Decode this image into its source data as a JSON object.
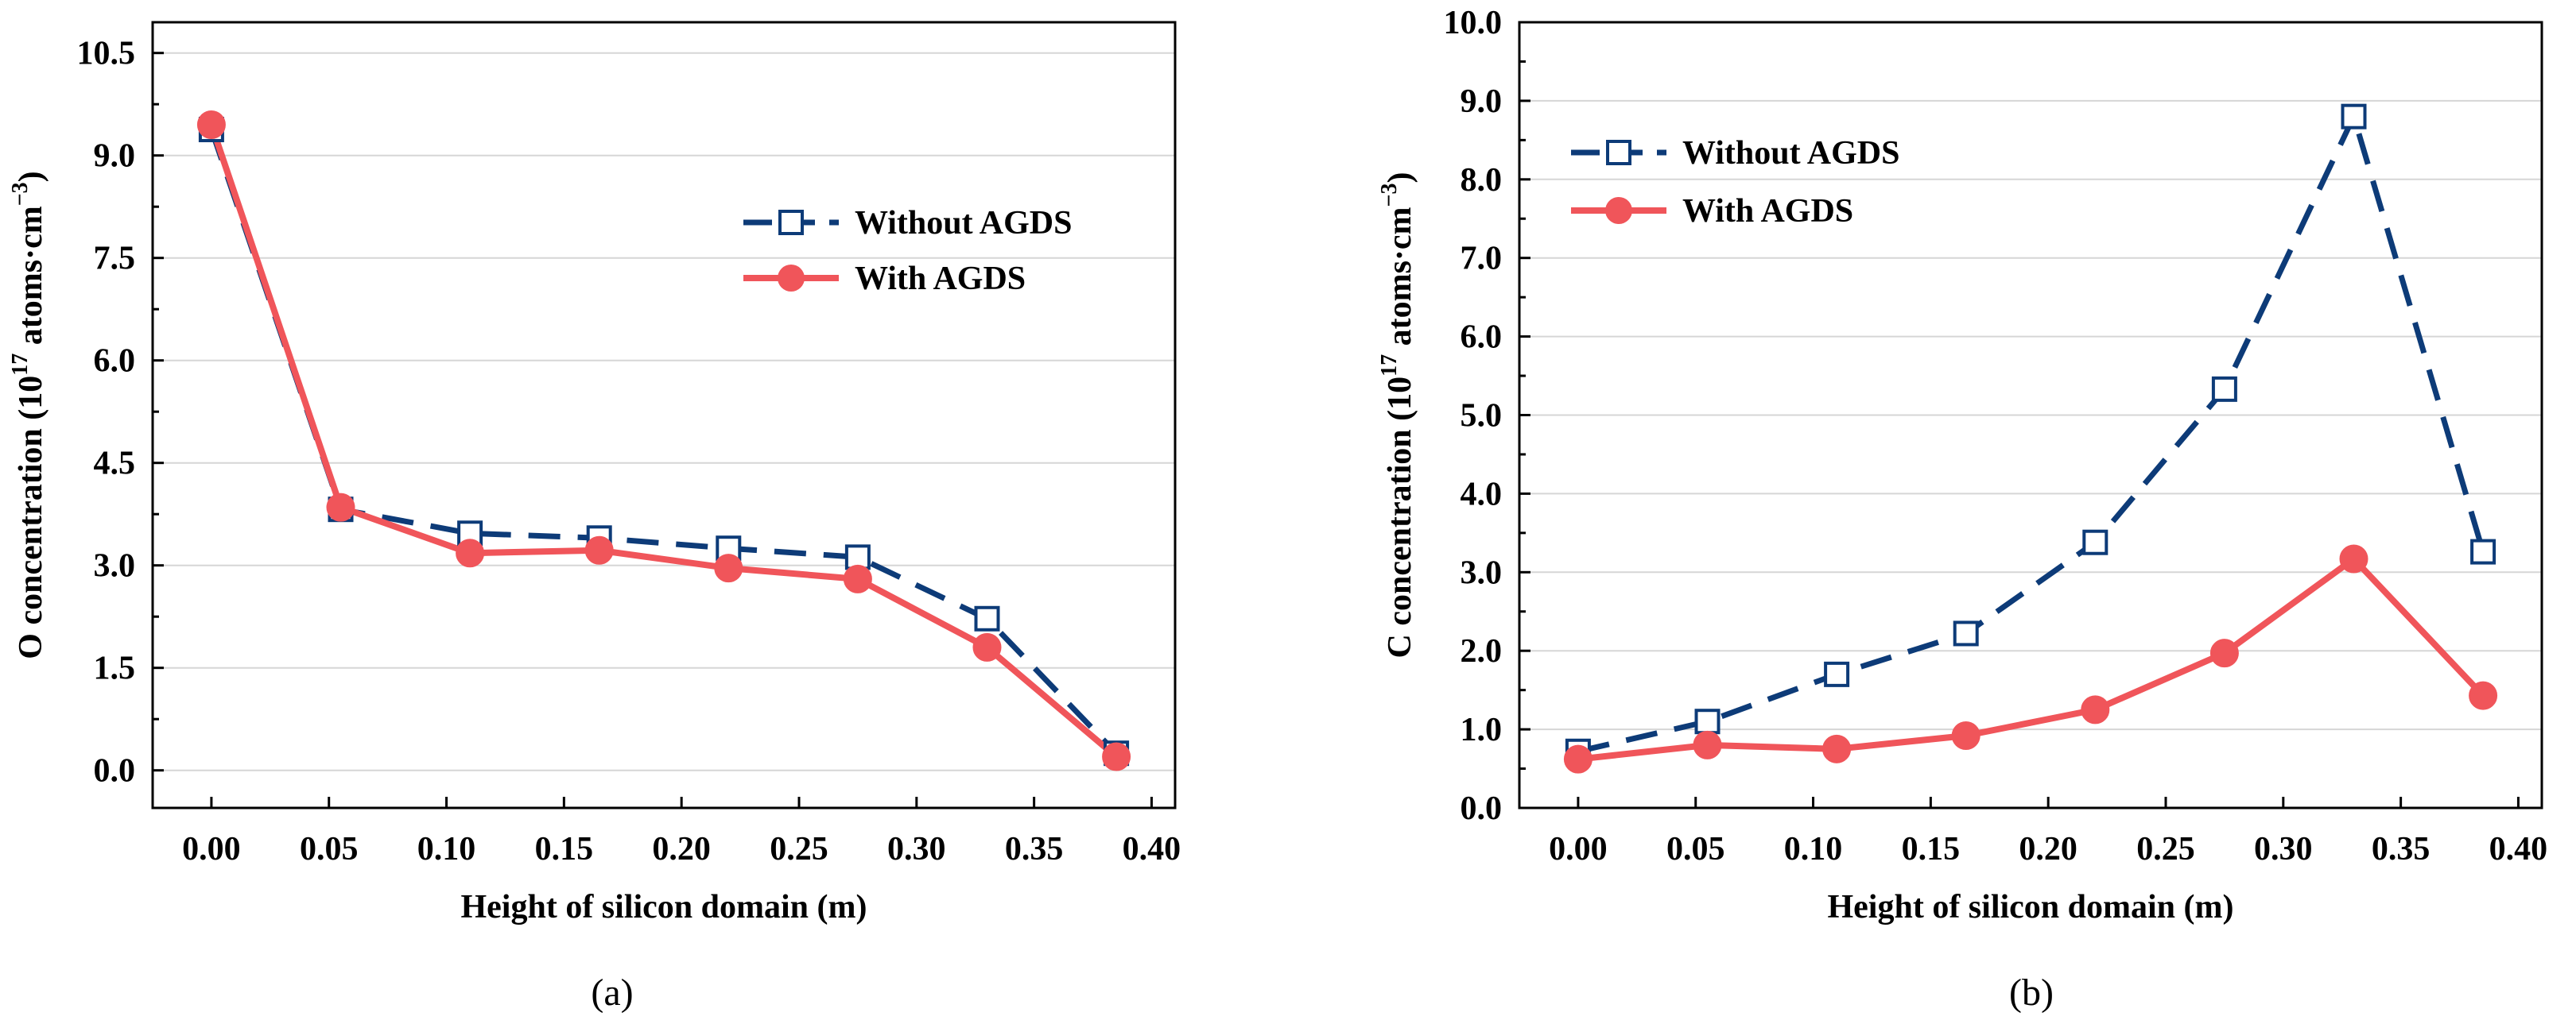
{
  "chart_data": [
    {
      "panel_label": "(a)",
      "type": "line",
      "xlabel": "Height of silicon domain (m)",
      "ylabel": {
        "main": "O concentration (10",
        "exp1": "17",
        "unit": " atoms·cm",
        "exp2": "−3",
        "close": ")"
      },
      "xlim": [
        -0.025,
        0.41
      ],
      "ylim": [
        -0.55,
        10.95
      ],
      "xticks": [
        "0.00",
        "0.05",
        "0.10",
        "0.15",
        "0.20",
        "0.25",
        "0.30",
        "0.35",
        "0.40"
      ],
      "yticks": [
        "0.0",
        "1.5",
        "3.0",
        "4.5",
        "6.0",
        "7.5",
        "9.0",
        "10.5"
      ],
      "legend_position": "middle-right",
      "series": [
        {
          "name": "Without AGDS",
          "style": "dashed",
          "marker": "open-square",
          "color": "#0d3b78",
          "x": [
            0.0,
            0.055,
            0.11,
            0.165,
            0.22,
            0.275,
            0.33,
            0.385
          ],
          "y": [
            9.38,
            3.82,
            3.47,
            3.4,
            3.25,
            3.12,
            2.22,
            0.25
          ]
        },
        {
          "name": "With AGDS",
          "style": "solid",
          "marker": "filled-circle",
          "color": "#f0555a",
          "x": [
            0.0,
            0.055,
            0.11,
            0.165,
            0.22,
            0.275,
            0.33,
            0.385
          ],
          "y": [
            9.45,
            3.85,
            3.18,
            3.22,
            2.96,
            2.8,
            1.8,
            0.2
          ]
        }
      ]
    },
    {
      "panel_label": "(b)",
      "type": "line",
      "xlabel": "Height of silicon domain (m)",
      "ylabel": {
        "main": "C concentration (10",
        "exp1": "17",
        "unit": " atoms·cm",
        "exp2": "−3",
        "close": ")"
      },
      "xlim": [
        -0.025,
        0.41
      ],
      "ylim": [
        0.0,
        10.0
      ],
      "xticks": [
        "0.00",
        "0.05",
        "0.10",
        "0.15",
        "0.20",
        "0.25",
        "0.30",
        "0.35",
        "0.40"
      ],
      "yticks": [
        "0.0",
        "1.0",
        "2.0",
        "3.0",
        "4.0",
        "5.0",
        "6.0",
        "7.0",
        "8.0",
        "9.0",
        "10.0"
      ],
      "legend_position": "top-left",
      "series": [
        {
          "name": "Without AGDS",
          "style": "dashed",
          "marker": "open-square",
          "color": "#0d3b78",
          "x": [
            0.0,
            0.055,
            0.11,
            0.165,
            0.22,
            0.275,
            0.33,
            0.385
          ],
          "y": [
            0.72,
            1.1,
            1.7,
            2.22,
            3.38,
            5.33,
            8.8,
            3.26
          ]
        },
        {
          "name": "With AGDS",
          "style": "solid",
          "marker": "filled-circle",
          "color": "#f0555a",
          "x": [
            0.0,
            0.055,
            0.11,
            0.165,
            0.22,
            0.275,
            0.33,
            0.385
          ],
          "y": [
            0.62,
            0.8,
            0.75,
            0.92,
            1.25,
            1.97,
            3.17,
            1.43
          ]
        }
      ]
    }
  ]
}
